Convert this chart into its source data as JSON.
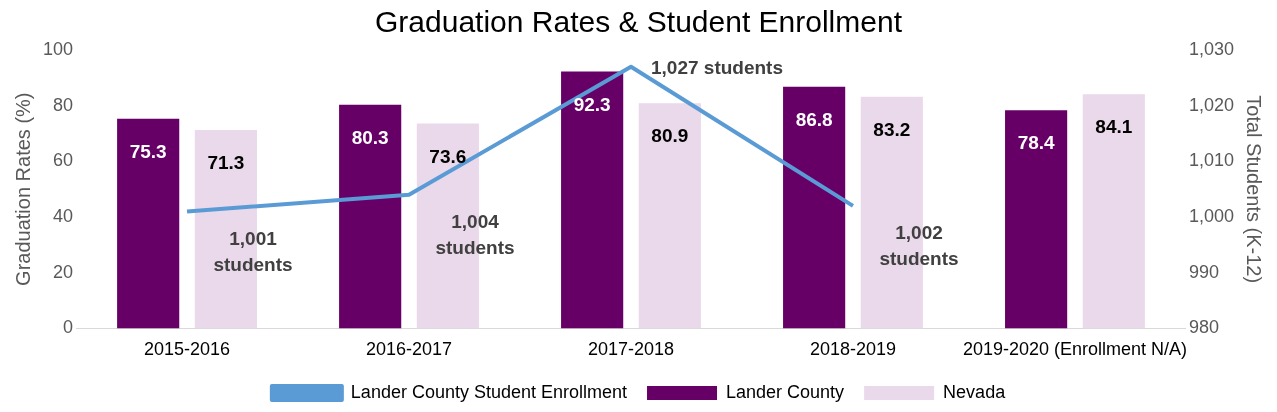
{
  "chart_data": {
    "type": "bar",
    "title": "Graduation Rates & Student Enrollment",
    "ylabel": "Graduation Rates (%)",
    "y2label": "Total Students (K-12)",
    "categories": [
      "2015-2016",
      "2016-2017",
      "2017-2018",
      "2018-2019",
      "2019-2020 (Enrollment N/A)"
    ],
    "series": [
      {
        "name": "Lander County",
        "color": "#660066",
        "values": [
          75.3,
          80.3,
          92.3,
          86.8,
          78.4
        ]
      },
      {
        "name": "Nevada",
        "color": "#ead9ea",
        "values": [
          71.3,
          73.6,
          80.9,
          83.2,
          84.1
        ]
      },
      {
        "name": "Lander County Student Enrollment",
        "type": "line",
        "axis": "y2",
        "color": "#5b9bd5",
        "values": [
          1001,
          1004,
          1027,
          1002,
          null
        ],
        "value_labels": [
          "1,001 students",
          "1,004 students",
          "1,027 students",
          "1,002 students",
          null
        ]
      }
    ],
    "ylim": [
      0,
      100
    ],
    "yticks": [
      0,
      20,
      40,
      60,
      80,
      100
    ],
    "y2lim": [
      980,
      1030
    ],
    "y2ticks": [
      980,
      990,
      {
        "value": 1000,
        "label": "1,000"
      },
      {
        "value": 1010,
        "label": "1,010"
      },
      {
        "value": 1020,
        "label": "1,020"
      },
      {
        "value": 1030,
        "label": "1,030"
      }
    ],
    "data_labels": true,
    "grid": false,
    "legend": "bottom",
    "marker": "none",
    "line_style": "solid"
  }
}
